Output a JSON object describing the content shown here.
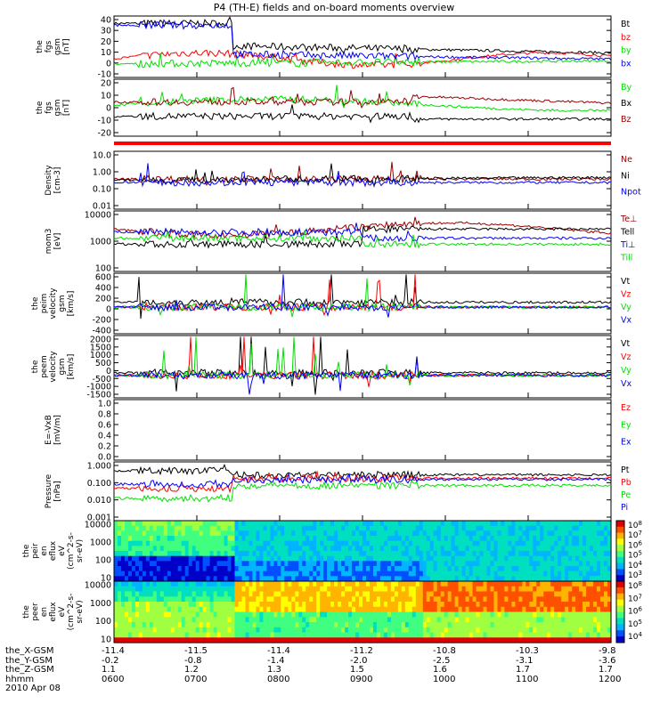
{
  "title": "P4 (TH-E) fields and on-board moments overview",
  "date": "2010 Apr 08",
  "colors": {
    "black": "#000000",
    "red": "#ff0000",
    "green": "#00e000",
    "blue": "#0000ff",
    "darkred": "#990000"
  },
  "footer": {
    "rows": [
      {
        "label": "the_X-GSM",
        "values": [
          "-11.4",
          "-11.5",
          "-11.4",
          "-11.2",
          "-10.8",
          "-10.3",
          "-9.8"
        ]
      },
      {
        "label": "the_Y-GSM",
        "values": [
          "-0.2",
          "-0.8",
          "-1.4",
          "-2.0",
          "-2.5",
          "-3.1",
          "-3.6"
        ]
      },
      {
        "label": "the_Z-GSM",
        "values": [
          "1.1",
          "1.2",
          "1.3",
          "1.5",
          "1.6",
          "1.7",
          "1.7"
        ]
      },
      {
        "label": "hhmm",
        "values": [
          "0600",
          "0700",
          "0800",
          "0900",
          "1000",
          "1100",
          "1200"
        ]
      }
    ]
  },
  "chart_data": [
    {
      "type": "line",
      "ylabel": [
        "the",
        "fgs",
        "gsm",
        "[nT]"
      ],
      "yticks": [
        "40",
        "30",
        "20",
        "10",
        "0",
        "-10"
      ],
      "ylim": [
        -10,
        40
      ],
      "series": [
        {
          "name": "Bt",
          "color": "#000000"
        },
        {
          "name": "bz",
          "color": "#ff0000"
        },
        {
          "name": "by",
          "color": "#00e000"
        },
        {
          "name": "bx",
          "color": "#0000ff"
        }
      ]
    },
    {
      "type": "line",
      "ylabel": [
        "the",
        "fgs",
        "gsm",
        "[nT]"
      ],
      "yticks": [
        "20",
        "10",
        "0",
        "-10",
        "-20"
      ],
      "ylim": [
        -25,
        25
      ],
      "series": [
        {
          "name": "By",
          "color": "#00e000"
        },
        {
          "name": "Bx",
          "color": "#000000"
        },
        {
          "name": "Bz",
          "color": "#990000"
        }
      ]
    },
    {
      "type": "line",
      "ylabel": [
        "Density",
        "[cm-3]"
      ],
      "yticks": [
        "10.0",
        "1.00",
        "0.10",
        "0.01"
      ],
      "scale": "log",
      "series": [
        {
          "name": "Ne",
          "color": "#990000"
        },
        {
          "name": "Ni",
          "color": "#000000"
        },
        {
          "name": "Npot",
          "color": "#0000ff"
        }
      ]
    },
    {
      "type": "line",
      "ylabel": [
        "mom3",
        "[eV]"
      ],
      "yticks": [
        "10000",
        "1000",
        "100"
      ],
      "scale": "log",
      "series": [
        {
          "name": "Te⊥",
          "color": "#990000"
        },
        {
          "name": "Tell",
          "color": "#000000"
        },
        {
          "name": "Ti⊥",
          "color": "#0000ff"
        },
        {
          "name": "Till",
          "color": "#00e000"
        }
      ]
    },
    {
      "type": "line",
      "ylabel": [
        "the",
        "peim",
        "velocity",
        "gsm",
        "[km/s]"
      ],
      "yticks": [
        "600",
        "400",
        "200",
        "0",
        "-200",
        "-400"
      ],
      "ylim": [
        -500,
        600
      ],
      "series": [
        {
          "name": "Vt",
          "color": "#000000"
        },
        {
          "name": "Vz",
          "color": "#ff0000"
        },
        {
          "name": "Vy",
          "color": "#00e000"
        },
        {
          "name": "Vx",
          "color": "#0000ff"
        }
      ]
    },
    {
      "type": "line",
      "ylabel": [
        "the",
        "peem",
        "velocity",
        "gsm",
        "[km/s]"
      ],
      "yticks": [
        "2000",
        "1500",
        "1000",
        "500",
        "0",
        "-500",
        "-1000",
        "-1500"
      ],
      "ylim": [
        -1600,
        2000
      ],
      "series": [
        {
          "name": "Vt",
          "color": "#000000"
        },
        {
          "name": "Vz",
          "color": "#ff0000"
        },
        {
          "name": "Vy",
          "color": "#00e000"
        },
        {
          "name": "Vx",
          "color": "#0000ff"
        }
      ]
    },
    {
      "type": "line",
      "ylabel": [
        "E=-VxB",
        "[mV/m]"
      ],
      "yticks": [
        "1.0",
        "0.8",
        "0.6",
        "0.4",
        "0.2",
        "0.0"
      ],
      "ylim": [
        0,
        1
      ],
      "series": [
        {
          "name": "Ez",
          "color": "#ff0000"
        },
        {
          "name": "Ey",
          "color": "#00e000"
        },
        {
          "name": "Ex",
          "color": "#0000ff"
        }
      ]
    },
    {
      "type": "line",
      "ylabel": [
        "Pressure",
        "[nPa]"
      ],
      "yticks": [
        "1.000",
        "0.100",
        "0.010",
        "0.001"
      ],
      "scale": "log",
      "series": [
        {
          "name": "Pt",
          "color": "#000000"
        },
        {
          "name": "Pb",
          "color": "#ff0000"
        },
        {
          "name": "Pe",
          "color": "#00e000"
        },
        {
          "name": "Pi",
          "color": "#0000ff"
        }
      ]
    },
    {
      "type": "heatmap",
      "ylabel": [
        "the",
        "peir",
        "en",
        "eflux",
        "eV",
        "(cm^2-s-",
        "sr-eV)"
      ],
      "yticks": [
        "10000",
        "1000",
        "100",
        "10"
      ],
      "colorbar": [
        "10^8",
        "10^7",
        "10^6",
        "10^5",
        "10^4",
        "10^3"
      ]
    },
    {
      "type": "heatmap",
      "ylabel": [
        "the",
        "peer",
        "en",
        "eflux",
        "eV",
        "(cm^2-s-",
        "sr-eV)"
      ],
      "yticks": [
        "10000",
        "1000",
        "100",
        "10"
      ],
      "colorbar": [
        "10^8",
        "10^7",
        "10^6",
        "10^5",
        "10^4"
      ]
    }
  ]
}
